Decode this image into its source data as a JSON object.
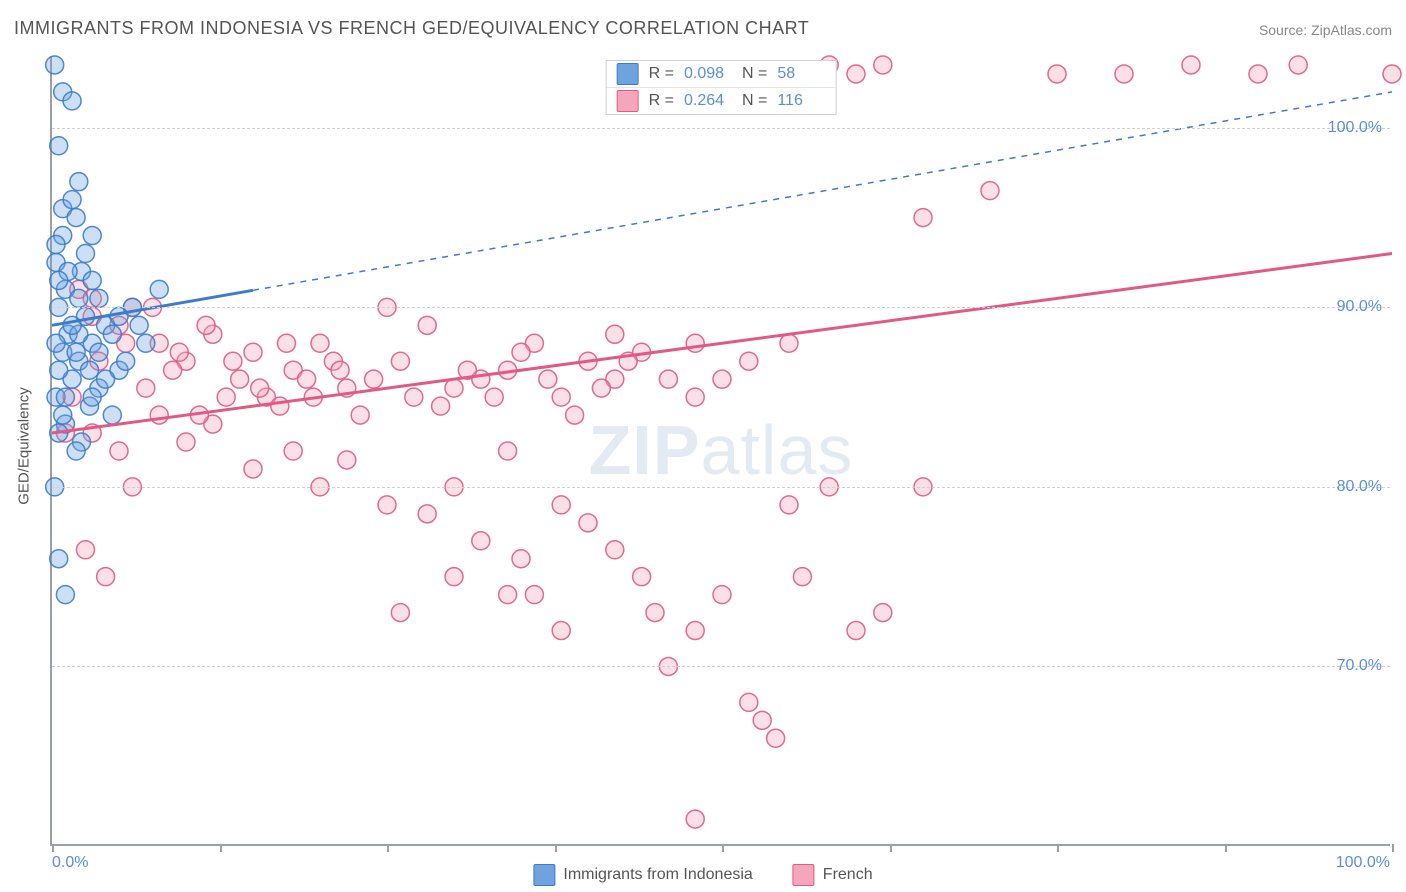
{
  "title": "IMMIGRANTS FROM INDONESIA VS FRENCH GED/EQUIVALENCY CORRELATION CHART",
  "source_label": "Source: ZipAtlas.com",
  "watermark": "ZIPatlas",
  "chart": {
    "type": "scatter",
    "ylabel": "GED/Equivalency",
    "xlim": [
      0,
      100
    ],
    "ylim": [
      60,
      104
    ],
    "yticks": [
      70,
      80,
      90,
      100
    ],
    "ytick_labels": [
      "70.0%",
      "80.0%",
      "90.0%",
      "100.0%"
    ],
    "xtick_positions": [
      0,
      12.5,
      25,
      37.5,
      50,
      62.5,
      75,
      87.5,
      100
    ],
    "xlabel_min": "0.0%",
    "xlabel_max": "100.0%",
    "background_color": "#ffffff",
    "grid_color": "#d0d0d0",
    "axis_color": "#9aa0a6",
    "marker_radius": 9,
    "marker_opacity": 0.35,
    "marker_stroke_opacity": 0.9,
    "series": [
      {
        "id": "indonesia",
        "legend_label": "Immigrants from Indonesia",
        "fill_color": "#6ea3e0",
        "stroke_color": "#3d7cc9",
        "R": "0.098",
        "N": "58",
        "trend": {
          "y_at_0": 89.0,
          "y_at_100": 102.0,
          "solid_until_x": 15
        },
        "points": [
          [
            0.2,
            103.5
          ],
          [
            0.8,
            102.0
          ],
          [
            1.5,
            101.5
          ],
          [
            0.5,
            99.0
          ],
          [
            2.0,
            97.0
          ],
          [
            0.8,
            95.5
          ],
          [
            1.8,
            95.0
          ],
          [
            3.0,
            94.0
          ],
          [
            0.3,
            92.5
          ],
          [
            2.2,
            92.0
          ],
          [
            1.0,
            91.0
          ],
          [
            3.5,
            90.5
          ],
          [
            0.5,
            90.0
          ],
          [
            2.5,
            89.5
          ],
          [
            4.0,
            89.0
          ],
          [
            1.2,
            88.5
          ],
          [
            3.0,
            88.0
          ],
          [
            0.8,
            87.5
          ],
          [
            2.0,
            87.0
          ],
          [
            5.0,
            86.5
          ],
          [
            1.5,
            86.0
          ],
          [
            3.5,
            85.5
          ],
          [
            0.3,
            85.0
          ],
          [
            2.8,
            84.5
          ],
          [
            4.5,
            84.0
          ],
          [
            1.0,
            83.5
          ],
          [
            0.5,
            83.0
          ],
          [
            2.2,
            82.5
          ],
          [
            1.8,
            82.0
          ],
          [
            0.2,
            80.0
          ],
          [
            0.5,
            76.0
          ],
          [
            1.0,
            74.0
          ],
          [
            6.0,
            90.0
          ],
          [
            7.0,
            88.0
          ],
          [
            8.0,
            91.0
          ],
          [
            5.5,
            87.0
          ],
          [
            6.5,
            89.0
          ],
          [
            4.0,
            86.0
          ],
          [
            3.0,
            91.5
          ],
          [
            2.5,
            93.0
          ],
          [
            1.5,
            96.0
          ],
          [
            0.8,
            94.0
          ],
          [
            0.3,
            93.5
          ],
          [
            2.0,
            90.5
          ],
          [
            1.2,
            92.0
          ],
          [
            0.5,
            91.5
          ],
          [
            3.5,
            87.5
          ],
          [
            4.5,
            88.5
          ],
          [
            5.0,
            89.5
          ],
          [
            2.8,
            86.5
          ],
          [
            1.0,
            85.0
          ],
          [
            0.8,
            84.0
          ],
          [
            3.0,
            85.0
          ],
          [
            2.0,
            88.5
          ],
          [
            1.5,
            89.0
          ],
          [
            0.3,
            88.0
          ],
          [
            0.5,
            86.5
          ],
          [
            1.8,
            87.5
          ]
        ]
      },
      {
        "id": "french",
        "legend_label": "French",
        "fill_color": "#f4a6bc",
        "stroke_color": "#e05a84",
        "R": "0.264",
        "N": "116",
        "trend": {
          "y_at_0": 83.0,
          "y_at_100": 93.0,
          "solid_until_x": 100
        },
        "points": [
          [
            2.0,
            91.0
          ],
          [
            3.0,
            90.5
          ],
          [
            5.0,
            89.0
          ],
          [
            6.0,
            90.0
          ],
          [
            8.0,
            88.0
          ],
          [
            10.0,
            87.0
          ],
          [
            12.0,
            88.5
          ],
          [
            14.0,
            86.0
          ],
          [
            15.0,
            87.5
          ],
          [
            16.0,
            85.0
          ],
          [
            18.0,
            86.5
          ],
          [
            20.0,
            88.0
          ],
          [
            22.0,
            85.5
          ],
          [
            24.0,
            86.0
          ],
          [
            25.0,
            90.0
          ],
          [
            26.0,
            87.0
          ],
          [
            28.0,
            89.0
          ],
          [
            30.0,
            85.5
          ],
          [
            32.0,
            86.0
          ],
          [
            34.0,
            86.5
          ],
          [
            36.0,
            88.0
          ],
          [
            38.0,
            85.0
          ],
          [
            40.0,
            87.0
          ],
          [
            42.0,
            86.0
          ],
          [
            45.0,
            103.0
          ],
          [
            48.0,
            85.0
          ],
          [
            52.0,
            103.0
          ],
          [
            58.0,
            103.5
          ],
          [
            60.0,
            103.0
          ],
          [
            62.0,
            103.5
          ],
          [
            65.0,
            95.0
          ],
          [
            70.0,
            96.5
          ],
          [
            75.0,
            103.0
          ],
          [
            80.0,
            103.0
          ],
          [
            85.0,
            103.5
          ],
          [
            90.0,
            103.0
          ],
          [
            93.0,
            103.5
          ],
          [
            100.0,
            103.0
          ],
          [
            3.0,
            83.0
          ],
          [
            5.0,
            82.0
          ],
          [
            8.0,
            84.0
          ],
          [
            10.0,
            82.5
          ],
          [
            12.0,
            83.5
          ],
          [
            15.0,
            81.0
          ],
          [
            18.0,
            82.0
          ],
          [
            20.0,
            80.0
          ],
          [
            22.0,
            81.5
          ],
          [
            25.0,
            79.0
          ],
          [
            28.0,
            78.5
          ],
          [
            30.0,
            80.0
          ],
          [
            32.0,
            77.0
          ],
          [
            34.0,
            82.0
          ],
          [
            35.0,
            76.0
          ],
          [
            36.0,
            74.0
          ],
          [
            38.0,
            79.0
          ],
          [
            40.0,
            78.0
          ],
          [
            42.0,
            76.5
          ],
          [
            44.0,
            75.0
          ],
          [
            45.0,
            73.0
          ],
          [
            46.0,
            70.0
          ],
          [
            48.0,
            72.0
          ],
          [
            50.0,
            74.0
          ],
          [
            52.0,
            68.0
          ],
          [
            53.0,
            67.0
          ],
          [
            54.0,
            66.0
          ],
          [
            48.0,
            61.5
          ],
          [
            55.0,
            79.0
          ],
          [
            56.0,
            75.0
          ],
          [
            58.0,
            80.0
          ],
          [
            60.0,
            72.0
          ],
          [
            62.0,
            73.0
          ],
          [
            50.0,
            86.0
          ],
          [
            52.0,
            87.0
          ],
          [
            55.0,
            88.0
          ],
          [
            42.0,
            88.5
          ],
          [
            44.0,
            87.5
          ],
          [
            46.0,
            86.0
          ],
          [
            2.5,
            76.5
          ],
          [
            4.0,
            75.0
          ],
          [
            6.0,
            80.0
          ],
          [
            1.0,
            83.0
          ],
          [
            1.5,
            85.0
          ],
          [
            3.5,
            87.0
          ],
          [
            7.0,
            85.5
          ],
          [
            9.0,
            86.5
          ],
          [
            11.0,
            84.0
          ],
          [
            13.0,
            85.0
          ],
          [
            17.0,
            84.5
          ],
          [
            19.0,
            86.0
          ],
          [
            21.0,
            87.0
          ],
          [
            23.0,
            84.0
          ],
          [
            27.0,
            85.0
          ],
          [
            29.0,
            84.5
          ],
          [
            31.0,
            86.5
          ],
          [
            33.0,
            85.0
          ],
          [
            35.0,
            87.5
          ],
          [
            37.0,
            86.0
          ],
          [
            39.0,
            84.0
          ],
          [
            41.0,
            85.5
          ],
          [
            43.0,
            87.0
          ],
          [
            3.0,
            89.5
          ],
          [
            5.5,
            88.0
          ],
          [
            7.5,
            90.0
          ],
          [
            9.5,
            87.5
          ],
          [
            11.5,
            89.0
          ],
          [
            13.5,
            87.0
          ],
          [
            15.5,
            85.5
          ],
          [
            17.5,
            88.0
          ],
          [
            19.5,
            85.0
          ],
          [
            21.5,
            86.5
          ],
          [
            26.0,
            73.0
          ],
          [
            30.0,
            75.0
          ],
          [
            34.0,
            74.0
          ],
          [
            38.0,
            72.0
          ],
          [
            65.0,
            80.0
          ],
          [
            48.0,
            88.0
          ]
        ]
      }
    ]
  }
}
